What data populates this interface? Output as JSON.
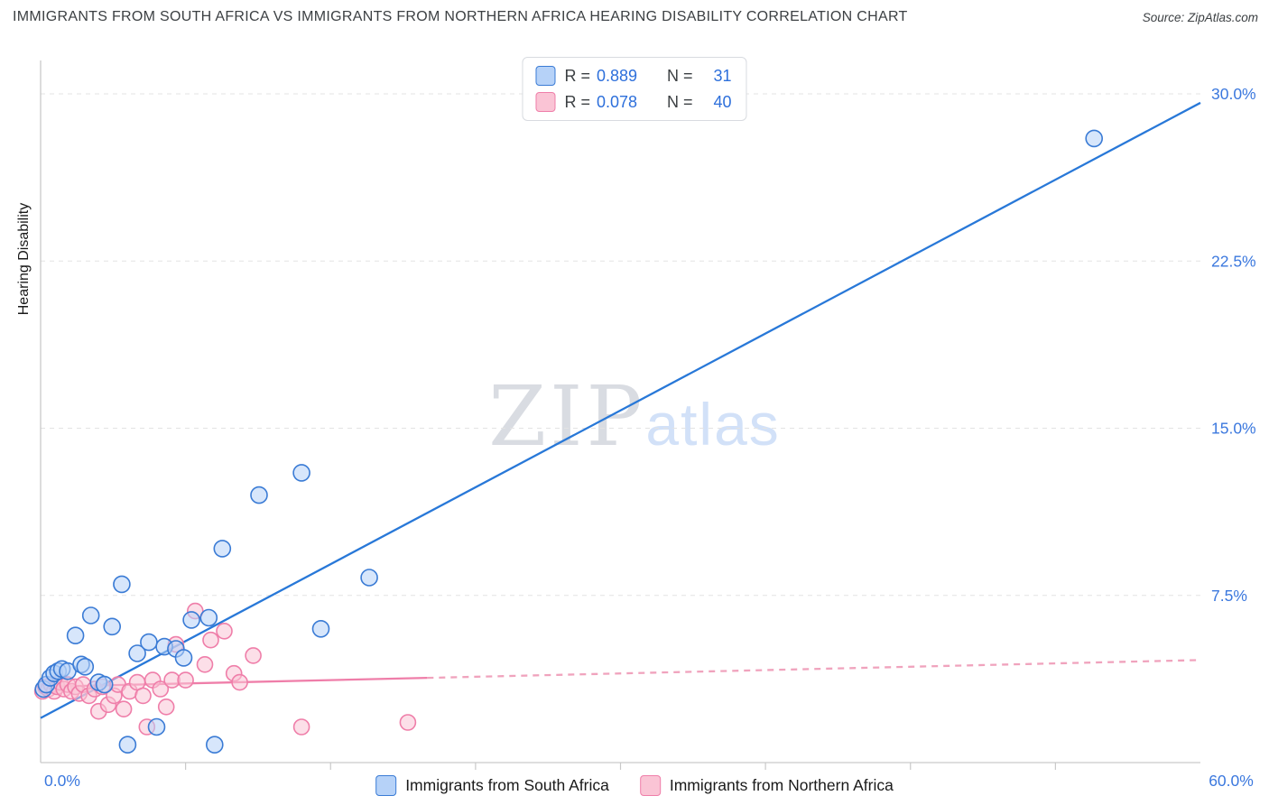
{
  "header": {
    "title": "IMMIGRANTS FROM SOUTH AFRICA VS IMMIGRANTS FROM NORTHERN AFRICA HEARING DISABILITY CORRELATION CHART",
    "source": "Source: ZipAtlas.com"
  },
  "legend_box": {
    "series": [
      {
        "r_label": "R =",
        "r_value": "0.889",
        "n_label": "N =",
        "n_value": "31"
      },
      {
        "r_label": "R =",
        "r_value": "0.078",
        "n_label": "N =",
        "n_value": "40"
      }
    ]
  },
  "watermark": {
    "part1": "ZIP",
    "part2": "atlas"
  },
  "axes": {
    "y_title": "Hearing Disability",
    "x_min_label": "0.0%",
    "x_max_label": "60.0%"
  },
  "bottom_legend": [
    {
      "label": "Immigrants from South Africa"
    },
    {
      "label": "Immigrants from Northern Africa"
    }
  ],
  "colors": {
    "axis_label_blue": "#3b78de",
    "grid_line": "#e3e3e3",
    "axis_line": "#c9c9c9",
    "blue_stroke": "#3a7bd5",
    "blue_fill": "#b6d2f8",
    "blue_trend": "#2878d8",
    "pink_stroke": "#ef7ea9",
    "pink_fill": "#fac4d5",
    "pink_trend_dashed": "#f0a3bd",
    "stat_value": "#2d6fdb"
  },
  "chart_data": {
    "type": "scatter",
    "title": "Immigrants from South Africa vs Immigrants from Northern Africa Hearing Disability Correlation",
    "xlabel": "",
    "ylabel": "Hearing Disability",
    "xlim": [
      0,
      60
    ],
    "ylim": [
      0,
      31.5
    ],
    "x_unit": "percent",
    "y_unit": "percent",
    "grid": "horizontal-dashed",
    "legend_position": "bottom-center",
    "x_tick_labels": [
      "0.0%",
      "60.0%"
    ],
    "y_ticks": [
      7.5,
      15,
      22.5,
      30
    ],
    "y_tick_labels": [
      "7.5%",
      "15.0%",
      "22.5%",
      "30.0%"
    ],
    "series": [
      {
        "name": "Immigrants from South Africa",
        "R": 0.889,
        "N": 31,
        "color": "#3a7bd5",
        "fill": "#b6d2f8",
        "points": [
          [
            0.15,
            3.3
          ],
          [
            0.3,
            3.5
          ],
          [
            0.5,
            3.8
          ],
          [
            0.7,
            4.0
          ],
          [
            0.9,
            4.1
          ],
          [
            1.1,
            4.2
          ],
          [
            1.4,
            4.1
          ],
          [
            1.8,
            5.7
          ],
          [
            2.1,
            4.4
          ],
          [
            2.3,
            4.3
          ],
          [
            2.6,
            6.6
          ],
          [
            3.0,
            3.6
          ],
          [
            3.3,
            3.5
          ],
          [
            3.7,
            6.1
          ],
          [
            4.2,
            8.0
          ],
          [
            4.5,
            0.8
          ],
          [
            5.0,
            4.9
          ],
          [
            5.6,
            5.4
          ],
          [
            6.0,
            1.6
          ],
          [
            6.4,
            5.2
          ],
          [
            7.0,
            5.1
          ],
          [
            7.4,
            4.7
          ],
          [
            7.8,
            6.4
          ],
          [
            8.7,
            6.5
          ],
          [
            9.0,
            0.8
          ],
          [
            9.4,
            9.6
          ],
          [
            11.3,
            12.0
          ],
          [
            13.5,
            13.0
          ],
          [
            14.5,
            6.0
          ],
          [
            17.0,
            8.3
          ],
          [
            54.5,
            28.0
          ]
        ]
      },
      {
        "name": "Immigrants from Northern Africa",
        "R": 0.078,
        "N": 40,
        "color": "#ef7ea9",
        "fill": "#fac4d5",
        "points": [
          [
            0.1,
            3.2
          ],
          [
            0.25,
            3.4
          ],
          [
            0.4,
            3.3
          ],
          [
            0.55,
            3.5
          ],
          [
            0.7,
            3.2
          ],
          [
            0.85,
            3.4
          ],
          [
            1.0,
            3.6
          ],
          [
            1.2,
            3.3
          ],
          [
            1.4,
            3.5
          ],
          [
            1.6,
            3.2
          ],
          [
            1.8,
            3.4
          ],
          [
            2.0,
            3.1
          ],
          [
            2.2,
            3.5
          ],
          [
            2.5,
            3.0
          ],
          [
            2.8,
            3.3
          ],
          [
            3.0,
            2.3
          ],
          [
            3.2,
            3.4
          ],
          [
            3.5,
            2.6
          ],
          [
            3.8,
            3.0
          ],
          [
            4.0,
            3.5
          ],
          [
            4.3,
            2.4
          ],
          [
            4.6,
            3.2
          ],
          [
            5.0,
            3.6
          ],
          [
            5.3,
            3.0
          ],
          [
            5.5,
            1.6
          ],
          [
            5.8,
            3.7
          ],
          [
            6.2,
            3.3
          ],
          [
            6.5,
            2.5
          ],
          [
            6.8,
            3.7
          ],
          [
            7.0,
            5.3
          ],
          [
            7.5,
            3.7
          ],
          [
            8.0,
            6.8
          ],
          [
            8.5,
            4.4
          ],
          [
            8.8,
            5.5
          ],
          [
            9.5,
            5.9
          ],
          [
            10.0,
            4.0
          ],
          [
            10.3,
            3.6
          ],
          [
            11.0,
            4.8
          ],
          [
            13.5,
            1.6
          ],
          [
            19.0,
            1.8
          ]
        ]
      }
    ],
    "trend_lines": [
      {
        "series": "Immigrants from South Africa",
        "style": "solid",
        "x0": 0,
        "y0": 2.0,
        "x1": 60,
        "y1": 29.6,
        "color": "#2878d8"
      },
      {
        "series": "Immigrants from Northern Africa",
        "style": "solid",
        "x0": 0,
        "y0": 3.4,
        "x1": 20,
        "y1": 3.8,
        "color": "#ef7ea9"
      },
      {
        "series": "Immigrants from Northern Africa",
        "style": "dashed",
        "x0": 20,
        "y0": 3.8,
        "x1": 60,
        "y1": 4.6,
        "color": "#f0a3bd"
      }
    ]
  }
}
